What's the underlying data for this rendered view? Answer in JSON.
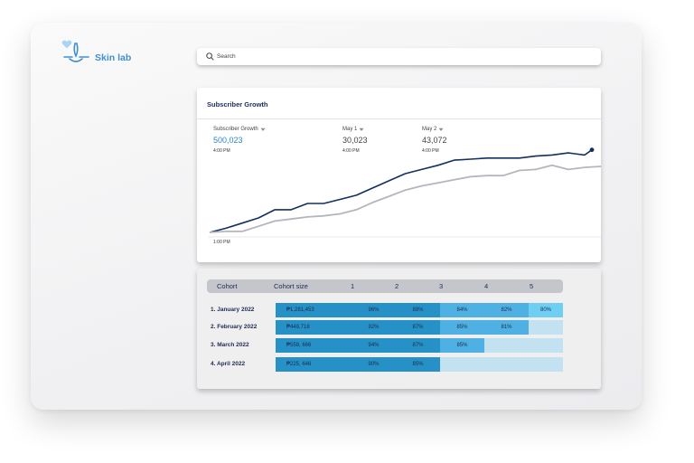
{
  "app": {
    "name": "Skin lab"
  },
  "search": {
    "placeholder": "Search",
    "value": ""
  },
  "growth": {
    "title": "Subscriber Growth",
    "metrics": [
      {
        "label": "Subscriber Growth",
        "value": "500,023",
        "time": "4:00 PM"
      },
      {
        "label": "May 1",
        "value": "30,023",
        "time": "4:00 PM"
      },
      {
        "label": "May 2",
        "value": "43,072",
        "time": "4:00 PM"
      }
    ],
    "axis_time": "1:00 PM"
  },
  "chart_data": {
    "type": "line",
    "series": [
      {
        "values": [
          0,
          4,
          9,
          14,
          22,
          22,
          28,
          28,
          32,
          36,
          43,
          50,
          57,
          61,
          65,
          70,
          71,
          72,
          72,
          72,
          74,
          75,
          77,
          75,
          80
        ]
      },
      {
        "values": [
          0,
          1,
          1,
          6,
          11,
          13,
          15,
          16,
          18,
          22,
          29,
          35,
          41,
          45,
          48,
          51,
          54,
          55,
          55,
          60,
          61,
          65,
          61,
          63,
          64
        ]
      }
    ],
    "colors": [
      "#13305f",
      "#b3b6bd"
    ],
    "ylim": [
      0,
      85
    ],
    "grid": false,
    "legend": "none"
  },
  "cohort": {
    "headers": [
      "Cohort",
      "Cohort size",
      "1",
      "2",
      "3",
      "4",
      "5"
    ],
    "rows": [
      {
        "label": "1. January 2022",
        "size": "₱1,281,453",
        "cells": [
          "96%",
          "88%",
          "84%",
          "82%",
          "80%"
        ]
      },
      {
        "label": "2. February 2022",
        "size": "₱449,718",
        "cells": [
          "92%",
          "87%",
          "85%",
          "81%",
          ""
        ]
      },
      {
        "label": "3. March 2022",
        "size": "₱559, 666",
        "cells": [
          "94%",
          "87%",
          "85%",
          "",
          ""
        ]
      },
      {
        "label": "4. April 2022",
        "size": "₱225, 646",
        "cells": [
          "90%",
          "85%",
          "",
          "",
          ""
        ]
      }
    ]
  },
  "colors": {
    "accent": "#2e86c8",
    "brand": "#3f8fd1",
    "cohort_dark": "#2691c6",
    "cohort_mid": "#4fb1e3",
    "cohort_light": "#6ecff2",
    "cohort_empty": "#c3e2f1"
  },
  "icons": {
    "logo": "skin-lab-logo-icon",
    "heart": "heart-icon",
    "search": "search-icon",
    "dropdown": "chevron-down-icon"
  }
}
